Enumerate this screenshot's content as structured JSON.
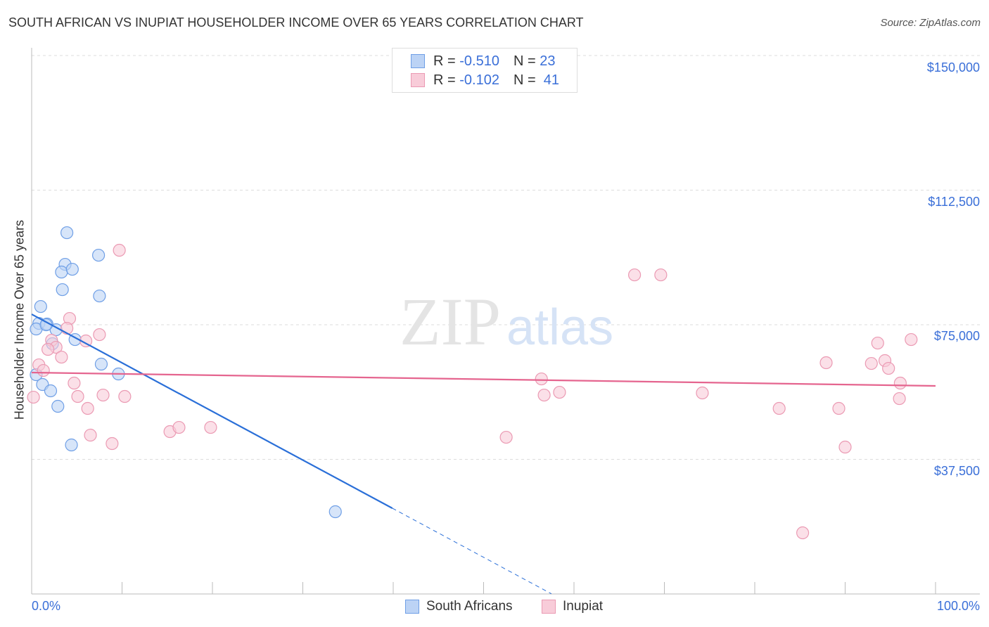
{
  "title": "SOUTH AFRICAN VS INUPIAT HOUSEHOLDER INCOME OVER 65 YEARS CORRELATION CHART",
  "source": "Source: ZipAtlas.com",
  "legend": {
    "r_label": "R =",
    "n_label": "N =",
    "blue": {
      "r": "-0.510",
      "n": "23"
    },
    "pink": {
      "r": "-0.102",
      "n": "41"
    }
  },
  "chart_data": {
    "type": "scatter",
    "title": "SOUTH AFRICAN VS INUPIAT HOUSEHOLDER INCOME OVER 65 YEARS CORRELATION CHART",
    "xlabel": "",
    "ylabel": "Householder Income Over 65 years",
    "xlim": [
      0,
      100
    ],
    "ylim": [
      0,
      150000
    ],
    "x_tick_labels": [
      "0.0%",
      "100.0%"
    ],
    "y_ticks": [
      37500,
      75000,
      112500,
      150000
    ],
    "y_tick_labels": [
      "$37,500",
      "$75,000",
      "$112,500",
      "$150,000"
    ],
    "legend_position": "bottom",
    "series": [
      {
        "name": "South Africans",
        "color": "#6f9fe6",
        "fill": "#bcd3f5",
        "line_color": "#2a6fd8",
        "trend": {
          "x0": 0,
          "y0": 77930,
          "x1": 39.9,
          "y1": 23890,
          "dash_to_x": 57.5
        },
        "points": [
          [
            3.9,
            100640
          ],
          [
            7.4,
            94370
          ],
          [
            3.7,
            91830
          ],
          [
            3.3,
            89680
          ],
          [
            4.5,
            90460
          ],
          [
            3.4,
            84780
          ],
          [
            7.5,
            83020
          ],
          [
            1.0,
            80080
          ],
          [
            0.8,
            75380
          ],
          [
            1.7,
            75190
          ],
          [
            0.5,
            73820
          ],
          [
            2.7,
            73620
          ],
          [
            4.8,
            70880
          ],
          [
            2.3,
            69710
          ],
          [
            7.7,
            64030
          ],
          [
            9.6,
            61290
          ],
          [
            0.5,
            61090
          ],
          [
            1.2,
            58350
          ],
          [
            2.1,
            56590
          ],
          [
            2.9,
            52280
          ],
          [
            4.4,
            41510
          ],
          [
            33.6,
            22910
          ],
          [
            1.6,
            74990
          ]
        ]
      },
      {
        "name": "Inupiat",
        "color": "#eb9ab3",
        "fill": "#f8ccd9",
        "line_color": "#e5658f",
        "trend": {
          "x0": 0,
          "y0": 61680,
          "x1": 100,
          "y1": 57960
        },
        "points": [
          [
            9.7,
            95750
          ],
          [
            66.7,
            88890
          ],
          [
            69.6,
            88890
          ],
          [
            4.2,
            76750
          ],
          [
            3.9,
            74010
          ],
          [
            7.5,
            72250
          ],
          [
            6.0,
            70490
          ],
          [
            2.2,
            70680
          ],
          [
            2.7,
            68720
          ],
          [
            1.8,
            68140
          ],
          [
            3.3,
            65980
          ],
          [
            0.8,
            63830
          ],
          [
            1.3,
            62260
          ],
          [
            4.7,
            58740
          ],
          [
            56.4,
            59910
          ],
          [
            87.9,
            64420
          ],
          [
            93.6,
            69900
          ],
          [
            97.3,
            70880
          ],
          [
            92.9,
            64220
          ],
          [
            94.4,
            65010
          ],
          [
            94.8,
            62850
          ],
          [
            96.1,
            58740
          ],
          [
            5.1,
            55020
          ],
          [
            7.9,
            55410
          ],
          [
            10.3,
            55020
          ],
          [
            56.7,
            55410
          ],
          [
            58.4,
            56190
          ],
          [
            74.2,
            56000
          ],
          [
            0.2,
            54820
          ],
          [
            6.2,
            51690
          ],
          [
            82.7,
            51690
          ],
          [
            89.3,
            51690
          ],
          [
            96.0,
            54430
          ],
          [
            6.5,
            44250
          ],
          [
            15.3,
            45230
          ],
          [
            16.3,
            46400
          ],
          [
            19.8,
            46400
          ],
          [
            8.9,
            41900
          ],
          [
            52.5,
            43660
          ],
          [
            90.0,
            40920
          ],
          [
            85.3,
            17030
          ]
        ]
      }
    ]
  }
}
